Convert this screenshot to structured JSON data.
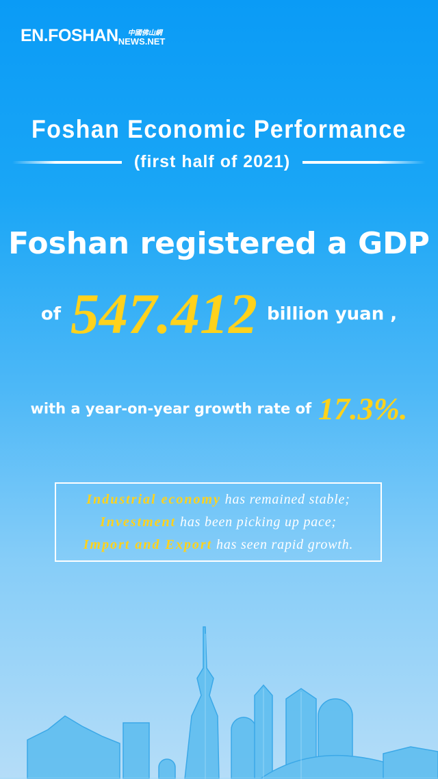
{
  "logo": {
    "en": "EN.FOSHAN",
    "cn": "中國佛山網",
    "net": "NEWS.NET"
  },
  "title": "Foshan Economic Performance",
  "subtitle": "(first half of 2021)",
  "gdp": {
    "line1": "Foshan registered a GDP",
    "prefix": "of",
    "value": "547.412",
    "suffix": "billion yuan ,"
  },
  "growth": {
    "text": "with a year-on-year growth rate of",
    "value": "17.3%."
  },
  "highlights": [
    {
      "key": "Industrial economy",
      "rest": " has remained stable;"
    },
    {
      "key": "Investment",
      "rest": " has been picking up pace;"
    },
    {
      "key": "Import and Export",
      "rest": " has seen rapid growth."
    }
  ],
  "colors": {
    "accent": "#ffd21c",
    "bg_top": "#0a9bf6",
    "bg_bottom": "#b5ddf8"
  }
}
